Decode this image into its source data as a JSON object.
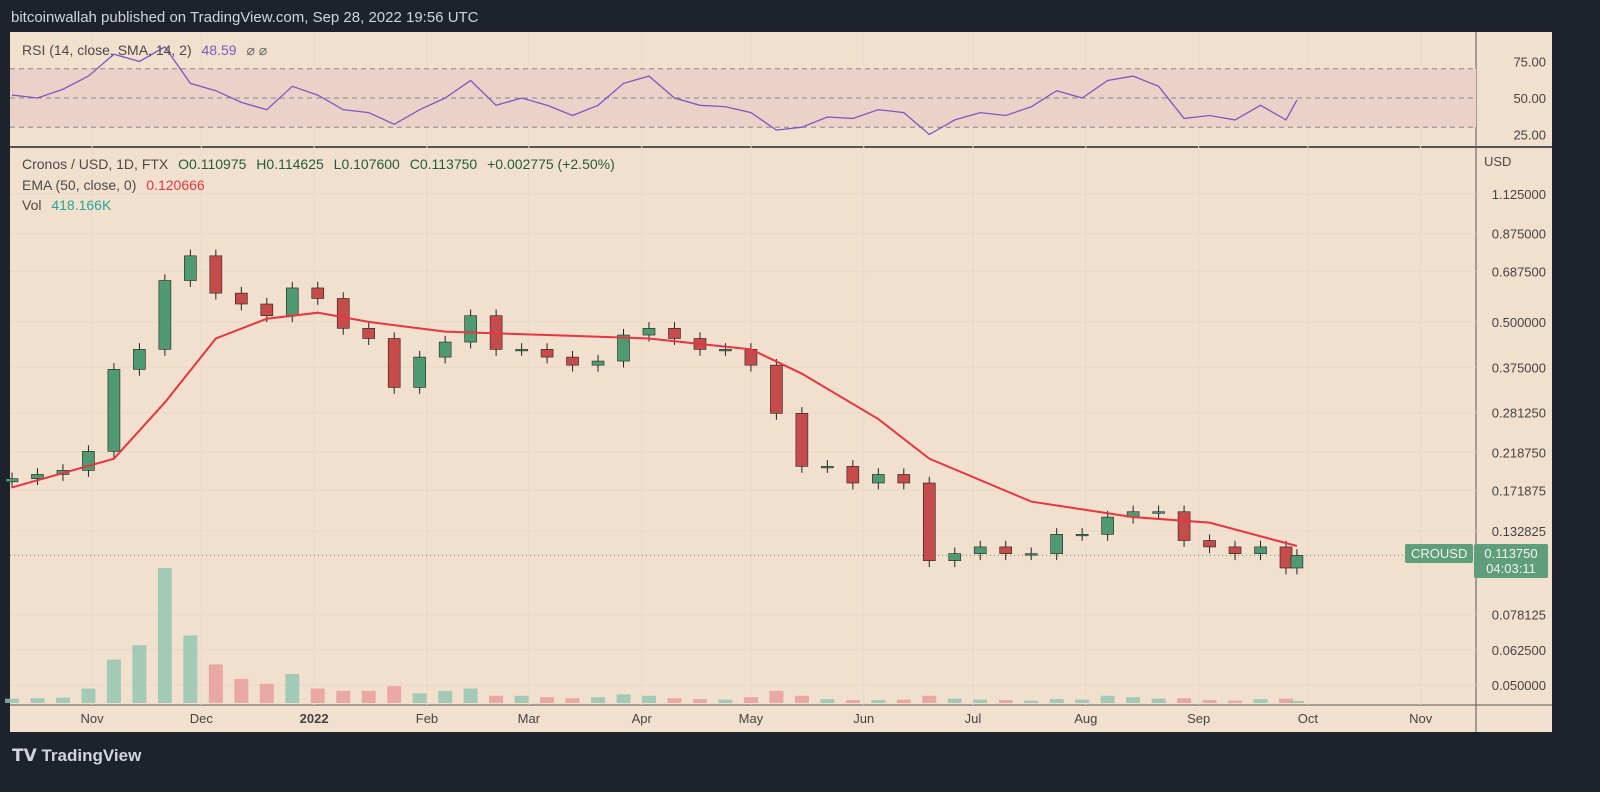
{
  "header": {
    "published": "bitcoinwallah published on TradingView.com, Sep 28, 2022 19:56 UTC"
  },
  "footer": {
    "brand": "TradingView"
  },
  "rsi_legend": {
    "label": "RSI (14, close, SMA, 14, 2)",
    "value": "48.59",
    "icons": "⌀ ⌀"
  },
  "legend": {
    "symbol": "Cronos / USD, 1D, FTX",
    "open": "O0.110975",
    "high": "H0.114625",
    "low": "L0.107600",
    "close": "C0.113750",
    "change": "+0.002775 (+2.50%)",
    "ema_label": "EMA (50, close, 0)",
    "ema_value": "0.120666",
    "vol_label": "Vol",
    "vol_value": "418.166K"
  },
  "price_axis": {
    "currency": "USD",
    "ticks": [
      "1.125000",
      "0.875000",
      "0.687500",
      "0.500000",
      "0.375000",
      "0.281250",
      "0.218750",
      "0.171875",
      "0.132825",
      "0.078125",
      "0.062500",
      "0.050000"
    ]
  },
  "rsi_axis": {
    "ticks": [
      "75.00",
      "50.00",
      "25.00"
    ]
  },
  "time_axis": {
    "ticks": [
      "Nov",
      "Dec",
      "2022",
      "Feb",
      "Mar",
      "Apr",
      "May",
      "Jun",
      "Jul",
      "Aug",
      "Sep",
      "Oct",
      "Nov"
    ]
  },
  "last_price": {
    "symbol": "CROUSD",
    "price": "0.113750",
    "countdown": "04:03:11"
  },
  "colors": {
    "background": "#f2e0ce",
    "up": "#4f9a70",
    "down": "#c64b4b",
    "ema": "#e8353f",
    "rsi": "#7e57c2",
    "frame": "#1e222d"
  },
  "chart_data": {
    "type": "candlestick",
    "scale": "log",
    "grid": true,
    "ylim": [
      0.05,
      1.125
    ],
    "note_units": "USD",
    "dates": [
      "2021-10-10",
      "2021-10-17",
      "2021-10-24",
      "2021-10-31",
      "2021-11-07",
      "2021-11-14",
      "2021-11-21",
      "2021-11-28",
      "2021-12-05",
      "2021-12-12",
      "2021-12-19",
      "2021-12-26",
      "2022-01-02",
      "2022-01-09",
      "2022-01-16",
      "2022-01-23",
      "2022-01-30",
      "2022-02-06",
      "2022-02-13",
      "2022-02-20",
      "2022-02-27",
      "2022-03-06",
      "2022-03-13",
      "2022-03-20",
      "2022-03-27",
      "2022-04-03",
      "2022-04-10",
      "2022-04-17",
      "2022-04-24",
      "2022-05-01",
      "2022-05-08",
      "2022-05-15",
      "2022-05-22",
      "2022-05-29",
      "2022-06-05",
      "2022-06-12",
      "2022-06-19",
      "2022-06-26",
      "2022-07-03",
      "2022-07-10",
      "2022-07-17",
      "2022-07-24",
      "2022-07-31",
      "2022-08-07",
      "2022-08-14",
      "2022-08-21",
      "2022-08-28",
      "2022-09-04",
      "2022-09-11",
      "2022-09-18",
      "2022-09-25",
      "2022-09-28"
    ],
    "close": [
      0.185,
      0.19,
      0.195,
      0.22,
      0.37,
      0.42,
      0.65,
      0.76,
      0.6,
      0.56,
      0.52,
      0.62,
      0.58,
      0.48,
      0.45,
      0.33,
      0.4,
      0.44,
      0.52,
      0.42,
      0.42,
      0.4,
      0.38,
      0.39,
      0.46,
      0.48,
      0.45,
      0.42,
      0.42,
      0.38,
      0.28,
      0.2,
      0.2,
      0.18,
      0.19,
      0.18,
      0.11,
      0.115,
      0.12,
      0.115,
      0.115,
      0.13,
      0.13,
      0.145,
      0.15,
      0.15,
      0.125,
      0.12,
      0.115,
      0.12,
      0.105,
      0.11375
    ],
    "volume_k": [
      900,
      1000,
      1100,
      3000,
      9000,
      12000,
      28000,
      14000,
      8000,
      5000,
      4000,
      6000,
      3000,
      2500,
      2500,
      3500,
      2000,
      2500,
      3000,
      1500,
      1500,
      1200,
      1000,
      1200,
      1800,
      1500,
      1000,
      800,
      700,
      1200,
      2500,
      1500,
      800,
      600,
      600,
      700,
      1500,
      900,
      700,
      600,
      500,
      800,
      700,
      1500,
      1200,
      900,
      1000,
      600,
      500,
      800,
      900,
      418.166
    ],
    "ema": {
      "name": "EMA (50, close, 0)",
      "dates": [
        "2021-10-10",
        "2021-11-07",
        "2021-11-21",
        "2021-12-05",
        "2021-12-19",
        "2022-01-02",
        "2022-01-16",
        "2022-02-06",
        "2022-03-06",
        "2022-04-03",
        "2022-05-01",
        "2022-05-15",
        "2022-06-05",
        "2022-06-19",
        "2022-07-17",
        "2022-08-14",
        "2022-09-04",
        "2022-09-28"
      ],
      "values": [
        0.175,
        0.21,
        0.3,
        0.45,
        0.51,
        0.53,
        0.5,
        0.47,
        0.46,
        0.45,
        0.42,
        0.36,
        0.27,
        0.21,
        0.16,
        0.145,
        0.14,
        0.1207
      ]
    },
    "rsi": {
      "name": "RSI (14, close, SMA, 14, 2)",
      "ylim": [
        0,
        100
      ],
      "bands": [
        30,
        50,
        70
      ],
      "values": [
        52,
        50,
        56,
        65,
        80,
        75,
        85,
        60,
        55,
        47,
        42,
        58,
        52,
        42,
        40,
        32,
        42,
        50,
        62,
        45,
        50,
        45,
        38,
        45,
        60,
        65,
        50,
        45,
        44,
        40,
        28,
        30,
        37,
        36,
        42,
        40,
        25,
        35,
        40,
        38,
        44,
        55,
        50,
        62,
        65,
        58,
        36,
        38,
        35,
        45,
        35,
        48.59
      ]
    }
  }
}
